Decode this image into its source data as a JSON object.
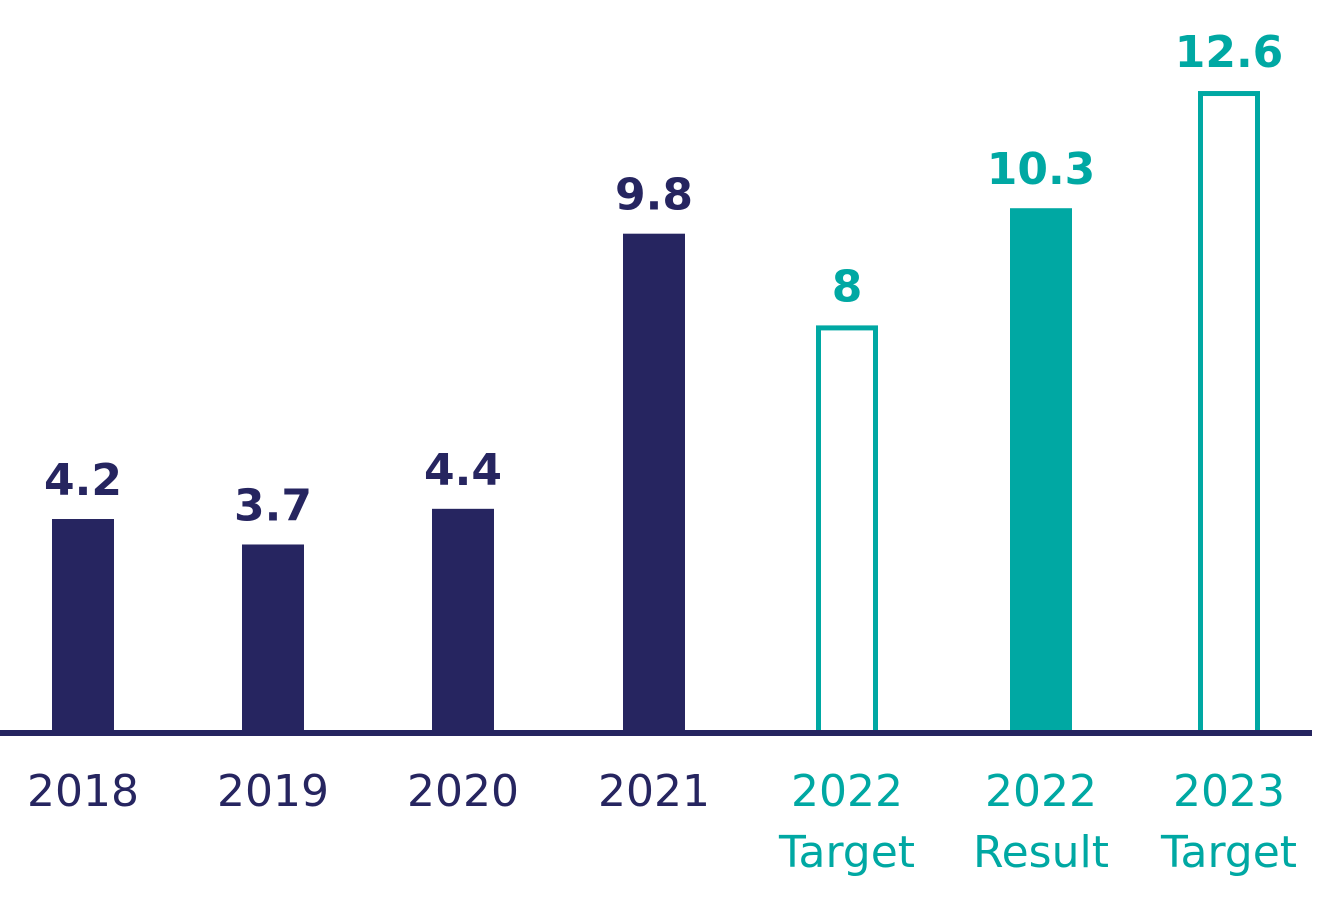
{
  "chart_data": {
    "type": "bar",
    "title": "",
    "xlabel": "",
    "ylabel": "",
    "ylim": [
      0,
      13.6
    ],
    "grid": false,
    "legend": "none",
    "colors": {
      "actual": "#262560",
      "forecast": "#00a8a3",
      "axis": "#262560",
      "fill_blank": "#ffffff"
    },
    "categories": [
      {
        "line1": "2018",
        "line2": ""
      },
      {
        "line1": "2019",
        "line2": ""
      },
      {
        "line1": "2020",
        "line2": ""
      },
      {
        "line1": "2021",
        "line2": ""
      },
      {
        "line1": "2022",
        "line2": "Target"
      },
      {
        "line1": "2022",
        "line2": "Result"
      },
      {
        "line1": "2023",
        "line2": "Target"
      }
    ],
    "values": [
      4.2,
      3.7,
      4.4,
      9.8,
      8,
      10.3,
      12.6
    ],
    "value_labels": [
      "4.2",
      "3.7",
      "4.4",
      "9.8",
      "8",
      "10.3",
      "12.6"
    ],
    "bar_styles": [
      "solid-actual",
      "solid-actual",
      "solid-actual",
      "solid-actual",
      "outline-forecast",
      "solid-forecast",
      "outline-forecast"
    ]
  }
}
